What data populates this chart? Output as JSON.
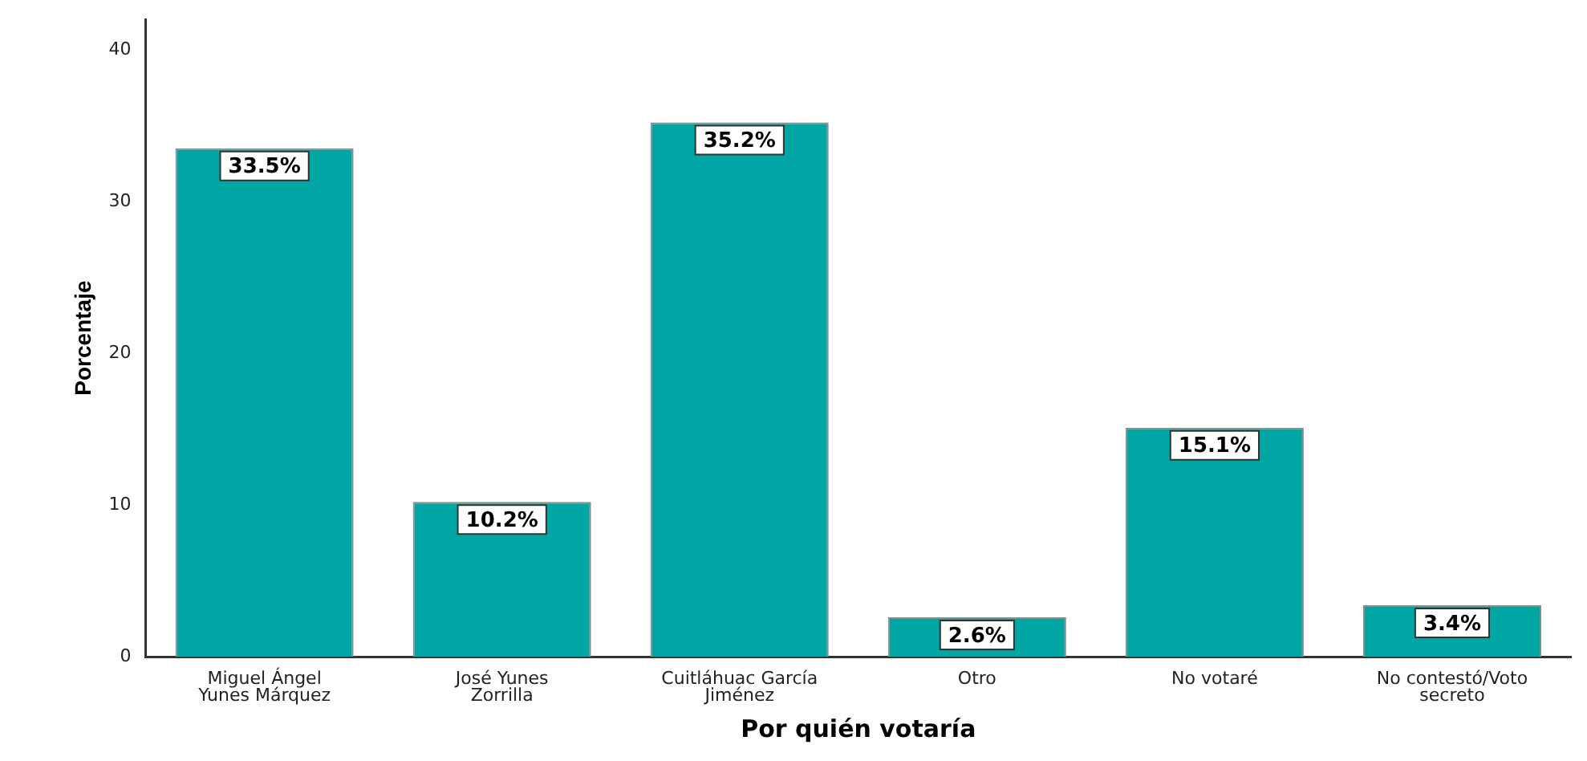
{
  "chart_data": {
    "type": "bar",
    "xlabel": "Por quién votaría",
    "ylabel": "Porcentaje",
    "categories": [
      "Miguel Ángel Yunes Márquez",
      "José Yunes Zorrilla",
      "Cuitláhuac García Jiménez",
      "Otro",
      "No votaré",
      "No contestó/Voto secreto"
    ],
    "values": [
      33.5,
      10.2,
      35.2,
      2.6,
      15.1,
      3.4
    ],
    "value_labels": [
      "33.5%",
      "10.2%",
      "35.2%",
      "2.6%",
      "15.1%",
      "3.4%"
    ],
    "color": "#00a6a3",
    "ylim": [
      0,
      42
    ],
    "yticks": [
      0,
      10,
      20,
      30,
      40
    ],
    "grid": false,
    "legend": false
  }
}
